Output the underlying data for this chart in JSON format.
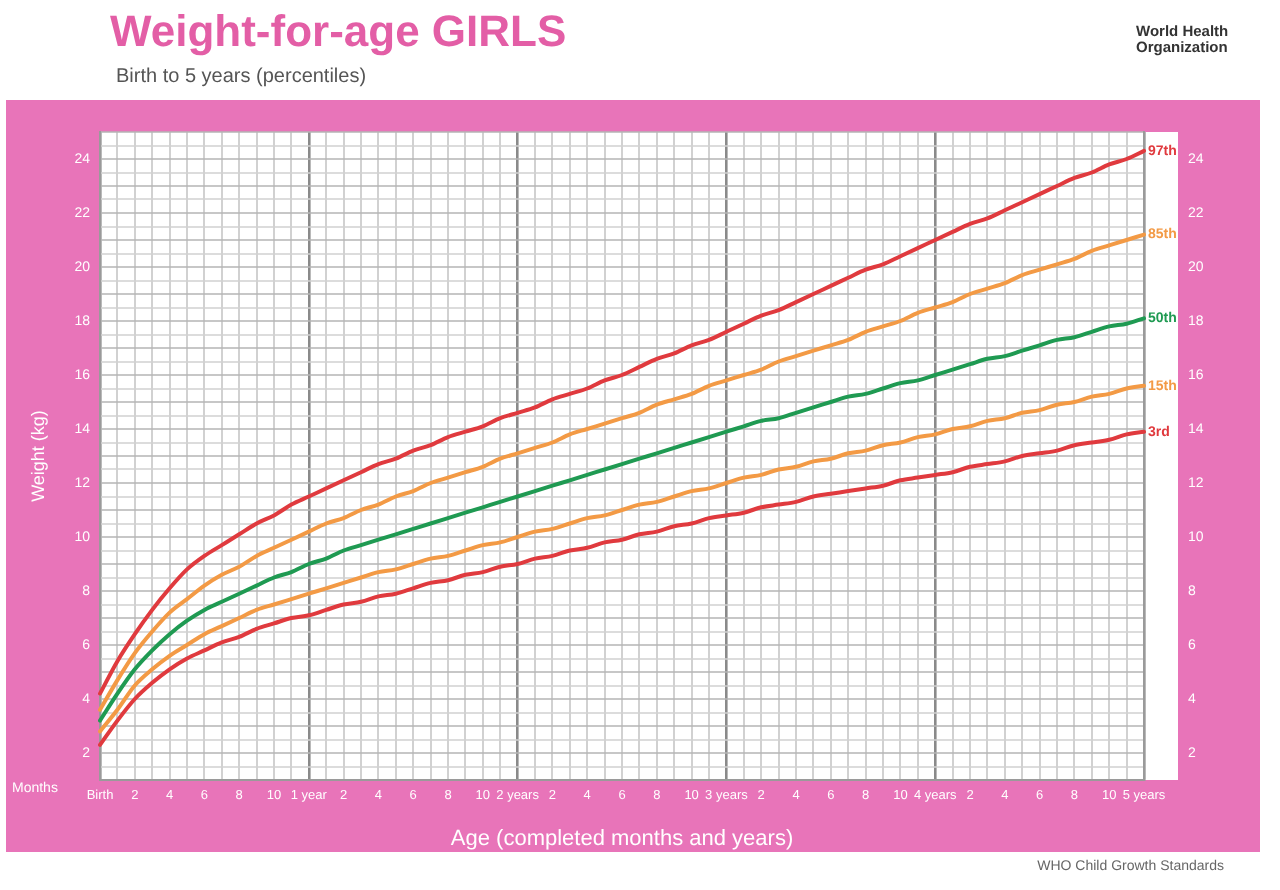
{
  "chart_data": {
    "type": "line",
    "title": "Weight-for-age GIRLS",
    "subtitle": "Birth to 5 years (percentiles)",
    "xlabel": "Age (completed months and years)",
    "ylabel": "Weight (kg)",
    "annotations": [
      "Months",
      "WHO Child Growth Standards",
      "World Health Organization"
    ],
    "categories": [
      "Birth",
      null,
      "2",
      null,
      "4",
      null,
      "6",
      null,
      "8",
      null,
      "10",
      null,
      "1 year",
      null,
      "2",
      null,
      "4",
      null,
      "6",
      null,
      "8",
      null,
      "10",
      null,
      "2 years",
      null,
      "2",
      null,
      "4",
      null,
      "6",
      null,
      "8",
      null,
      "10",
      null,
      "3 years",
      null,
      "2",
      null,
      "4",
      null,
      "6",
      null,
      "8",
      null,
      "10",
      null,
      "4 years",
      null,
      "2",
      null,
      "4",
      null,
      "6",
      null,
      "8",
      null,
      "10",
      null,
      "5 years"
    ],
    "series": [
      {
        "name": "97th",
        "color": "#e03a3e",
        "values": [
          4.2,
          5.4,
          6.4,
          7.3,
          8.1,
          8.8,
          9.3,
          9.7,
          10.1,
          10.5,
          10.8,
          11.2,
          11.5,
          11.8,
          12.1,
          12.4,
          12.7,
          12.9,
          13.2,
          13.4,
          13.7,
          13.9,
          14.1,
          14.4,
          14.6,
          14.8,
          15.1,
          15.3,
          15.5,
          15.8,
          16.0,
          16.3,
          16.6,
          16.8,
          17.1,
          17.3,
          17.6,
          17.9,
          18.2,
          18.4,
          18.7,
          19.0,
          19.3,
          19.6,
          19.9,
          20.1,
          20.4,
          20.7,
          21.0,
          21.3,
          21.6,
          21.8,
          22.1,
          22.4,
          22.7,
          23.0,
          23.3,
          23.5,
          23.8,
          24.0,
          24.3
        ]
      },
      {
        "name": "85th",
        "color": "#f39a45",
        "values": [
          3.6,
          4.7,
          5.7,
          6.5,
          7.2,
          7.7,
          8.2,
          8.6,
          8.9,
          9.3,
          9.6,
          9.9,
          10.2,
          10.5,
          10.7,
          11.0,
          11.2,
          11.5,
          11.7,
          12.0,
          12.2,
          12.4,
          12.6,
          12.9,
          13.1,
          13.3,
          13.5,
          13.8,
          14.0,
          14.2,
          14.4,
          14.6,
          14.9,
          15.1,
          15.3,
          15.6,
          15.8,
          16.0,
          16.2,
          16.5,
          16.7,
          16.9,
          17.1,
          17.3,
          17.6,
          17.8,
          18.0,
          18.3,
          18.5,
          18.7,
          19.0,
          19.2,
          19.4,
          19.7,
          19.9,
          20.1,
          20.3,
          20.6,
          20.8,
          21.0,
          21.2
        ]
      },
      {
        "name": "50th",
        "color": "#1f9a52",
        "values": [
          3.2,
          4.2,
          5.1,
          5.8,
          6.4,
          6.9,
          7.3,
          7.6,
          7.9,
          8.2,
          8.5,
          8.7,
          9.0,
          9.2,
          9.5,
          9.7,
          9.9,
          10.1,
          10.3,
          10.5,
          10.7,
          10.9,
          11.1,
          11.3,
          11.5,
          11.7,
          11.9,
          12.1,
          12.3,
          12.5,
          12.7,
          12.9,
          13.1,
          13.3,
          13.5,
          13.7,
          13.9,
          14.1,
          14.3,
          14.4,
          14.6,
          14.8,
          15.0,
          15.2,
          15.3,
          15.5,
          15.7,
          15.8,
          16.0,
          16.2,
          16.4,
          16.6,
          16.7,
          16.9,
          17.1,
          17.3,
          17.4,
          17.6,
          17.8,
          17.9,
          18.1
        ]
      },
      {
        "name": "15th",
        "color": "#f39a45",
        "values": [
          2.8,
          3.6,
          4.5,
          5.1,
          5.6,
          6.0,
          6.4,
          6.7,
          7.0,
          7.3,
          7.5,
          7.7,
          7.9,
          8.1,
          8.3,
          8.5,
          8.7,
          8.8,
          9.0,
          9.2,
          9.3,
          9.5,
          9.7,
          9.8,
          10.0,
          10.2,
          10.3,
          10.5,
          10.7,
          10.8,
          11.0,
          11.2,
          11.3,
          11.5,
          11.7,
          11.8,
          12.0,
          12.2,
          12.3,
          12.5,
          12.6,
          12.8,
          12.9,
          13.1,
          13.2,
          13.4,
          13.5,
          13.7,
          13.8,
          14.0,
          14.1,
          14.3,
          14.4,
          14.6,
          14.7,
          14.9,
          15.0,
          15.2,
          15.3,
          15.5,
          15.6
        ]
      },
      {
        "name": "3rd",
        "color": "#e03a3e",
        "values": [
          2.3,
          3.2,
          4.0,
          4.6,
          5.1,
          5.5,
          5.8,
          6.1,
          6.3,
          6.6,
          6.8,
          7.0,
          7.1,
          7.3,
          7.5,
          7.6,
          7.8,
          7.9,
          8.1,
          8.3,
          8.4,
          8.6,
          8.7,
          8.9,
          9.0,
          9.2,
          9.3,
          9.5,
          9.6,
          9.8,
          9.9,
          10.1,
          10.2,
          10.4,
          10.5,
          10.7,
          10.8,
          10.9,
          11.1,
          11.2,
          11.3,
          11.5,
          11.6,
          11.7,
          11.8,
          11.9,
          12.1,
          12.2,
          12.3,
          12.4,
          12.6,
          12.7,
          12.8,
          13.0,
          13.1,
          13.2,
          13.4,
          13.5,
          13.6,
          13.8,
          13.9
        ]
      }
    ],
    "ylim": [
      1,
      25
    ],
    "yticks": [
      {
        "value": 1,
        "label": null
      },
      {
        "value": 1.5,
        "label": null
      },
      2,
      {
        "value": 2.5,
        "label": null
      },
      {
        "value": 3,
        "label": null
      },
      {
        "value": 3.5,
        "label": null
      },
      4,
      {
        "value": 4.5,
        "label": null
      },
      {
        "value": 5,
        "label": null
      },
      {
        "value": 5.5,
        "label": null
      },
      6,
      {
        "value": 6.5,
        "label": null
      },
      {
        "value": 7,
        "label": null
      },
      {
        "value": 7.5,
        "label": null
      },
      8,
      {
        "value": 8.5,
        "label": null
      },
      {
        "value": 9,
        "label": null
      },
      {
        "value": 9.5,
        "label": null
      },
      10,
      {
        "value": 10.5,
        "label": null
      },
      {
        "value": 11,
        "label": null
      },
      {
        "value": 11.5,
        "label": null
      },
      12,
      {
        "value": 12.5,
        "label": null
      },
      {
        "value": 13,
        "label": null
      },
      {
        "value": 13.5,
        "label": null
      },
      14,
      {
        "value": 14.5,
        "label": null
      },
      {
        "value": 15,
        "label": null
      },
      {
        "value": 15.5,
        "label": null
      },
      16,
      {
        "value": 16.5,
        "label": null
      },
      {
        "value": 17,
        "label": null
      },
      {
        "value": 17.5,
        "label": null
      },
      18,
      {
        "value": 18.5,
        "label": null
      },
      {
        "value": 19,
        "label": null
      },
      {
        "value": 19.5,
        "label": null
      },
      20,
      {
        "value": 20.5,
        "label": null
      },
      {
        "value": 21,
        "label": null
      },
      {
        "value": 21.5,
        "label": null
      },
      22,
      {
        "value": 22.5,
        "label": null
      },
      {
        "value": 23,
        "label": null
      },
      {
        "value": 23.5,
        "label": null
      },
      24,
      {
        "value": 24.5,
        "label": null
      },
      {
        "value": 25,
        "label": null
      }
    ],
    "y2lim": [
      1,
      25
    ],
    "y2ticks": [
      2,
      4,
      6,
      8,
      10,
      12,
      14,
      16,
      18,
      20,
      22,
      24
    ],
    "grid": true
  }
}
